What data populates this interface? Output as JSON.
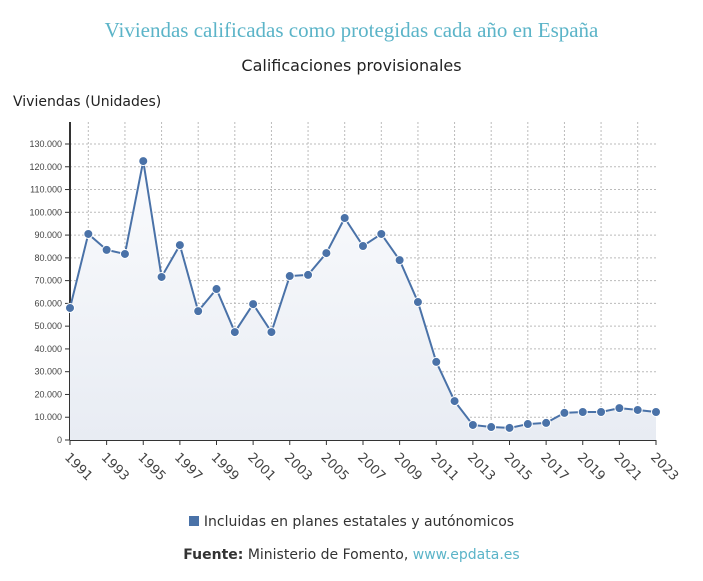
{
  "chart_data": {
    "type": "area",
    "title": "Viviendas calificadas como protegidas cada año en España",
    "subtitle": "Calificaciones provisionales",
    "ylabel": "Viviendas (Unidades)",
    "xlabel": "",
    "ylim": [
      0,
      130000
    ],
    "yticks": [
      "0",
      "10.000",
      "20.000",
      "30.000",
      "40.000",
      "50.000",
      "60.000",
      "70.000",
      "80.000",
      "90.000",
      "100.000",
      "110.000",
      "120.000",
      "130.000"
    ],
    "x": [
      1991,
      1992,
      1993,
      1994,
      1995,
      1996,
      1997,
      1998,
      1999,
      2000,
      2001,
      2002,
      2003,
      2004,
      2005,
      2006,
      2007,
      2008,
      2009,
      2010,
      2011,
      2012,
      2013,
      2014,
      2015,
      2016,
      2017,
      2018,
      2019,
      2020,
      2021,
      2022,
      2023
    ],
    "xticks": [
      "1991",
      "1993",
      "1995",
      "1997",
      "1999",
      "2001",
      "2003",
      "2005",
      "2007",
      "2009",
      "2011",
      "2013",
      "2015",
      "2017",
      "2019",
      "2021",
      "2023"
    ],
    "series": [
      {
        "name": "Incluidas en planes estatales y autónomicos",
        "color": "#4a72a8",
        "values": [
          58000,
          90500,
          83500,
          81700,
          122500,
          71600,
          85600,
          56600,
          66300,
          47400,
          59700,
          47400,
          72000,
          72500,
          82100,
          97500,
          85200,
          90500,
          79000,
          60600,
          34300,
          17100,
          6600,
          5700,
          5300,
          7000,
          7500,
          11900,
          12300,
          12300,
          14000,
          13200,
          12300
        ]
      }
    ],
    "grid": true,
    "legend": "bottom"
  },
  "source": {
    "label": "Fuente:",
    "text": "Ministerio de Fomento,",
    "link": "www.epdata.es"
  }
}
